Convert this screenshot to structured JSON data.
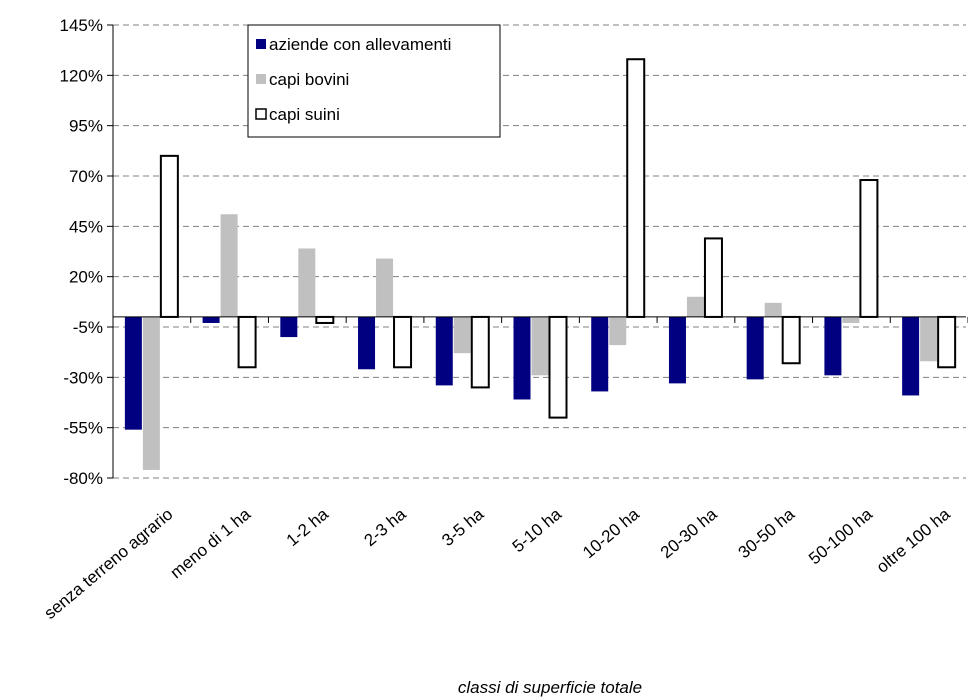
{
  "chart_data": {
    "type": "bar",
    "title": "",
    "xlabel": "classi di superficie totale",
    "ylabel": "",
    "ylim": [
      -80,
      145
    ],
    "yticks": [
      145,
      120,
      95,
      70,
      45,
      20,
      -5,
      -30,
      -55,
      -80
    ],
    "ytick_labels": [
      "145%",
      "120%",
      "95%",
      "70%",
      "45%",
      "20%",
      "-5%",
      "-30%",
      "-55%",
      "-80%"
    ],
    "grid": "horizontal dashed",
    "legend_position": "top-center",
    "categories": [
      "senza terreno agrario",
      "meno di 1 ha",
      "1-2 ha",
      "2-3 ha",
      "3-5 ha",
      "5-10 ha",
      "10-20 ha",
      "20-30 ha",
      "30-50 ha",
      "50-100 ha",
      "oltre 100 ha"
    ],
    "series": [
      {
        "name": "aziende con allevamenti",
        "color": "#000080",
        "style": "filled",
        "values": [
          -56,
          -3,
          -10,
          -26,
          -34,
          -41,
          -37,
          -33,
          -31,
          -29,
          -39
        ]
      },
      {
        "name": "capi bovini",
        "color": "#c0c0c0",
        "style": "filled",
        "values": [
          -76,
          51,
          34,
          29,
          -18,
          -29,
          -14,
          10,
          7,
          -3,
          -22
        ]
      },
      {
        "name": "capi suini",
        "color": "#ffffff",
        "style": "outlined",
        "values": [
          80,
          -25,
          -3,
          -25,
          -35,
          -50,
          128,
          39,
          -23,
          68,
          -25
        ]
      }
    ]
  }
}
